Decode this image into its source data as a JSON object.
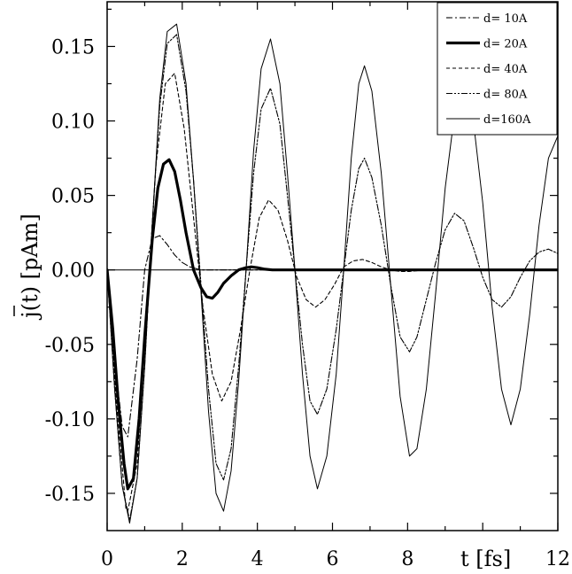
{
  "chart_data": {
    "type": "line",
    "title": "",
    "xlabel": "t [fs]",
    "ylabel": "j(t) [pAm]",
    "xlim": [
      0,
      12
    ],
    "ylim": [
      -0.175,
      0.18
    ],
    "x_ticks": [
      0,
      2,
      4,
      6,
      8,
      12
    ],
    "x_tick_labels": [
      "0",
      "2",
      "4",
      "6",
      "8",
      "12"
    ],
    "y_ticks": [
      0.15,
      0.1,
      0.05,
      0.0,
      -0.05,
      -0.1,
      -0.15
    ],
    "y_tick_labels": [
      "0.15",
      "0.10",
      "0.05",
      "0.00",
      "-0.05",
      "-0.10",
      "-0.15"
    ],
    "grid": false,
    "legend_position": "top-right",
    "zero_line": true,
    "series": [
      {
        "name": "d= 10A",
        "style": "dash-dot",
        "x": [
          0,
          0.2,
          0.4,
          0.55,
          0.8,
          1.0,
          1.2,
          1.4,
          1.6,
          1.8,
          2.0,
          2.2,
          2.5,
          3.0,
          12
        ],
        "y": [
          0,
          -0.06,
          -0.105,
          -0.112,
          -0.06,
          0.0,
          0.021,
          0.023,
          0.017,
          0.01,
          0.005,
          0.002,
          0.0,
          0.0,
          0.0
        ]
      },
      {
        "name": "d= 20A",
        "style": "thick",
        "x": [
          0,
          0.15,
          0.3,
          0.45,
          0.55,
          0.7,
          0.85,
          1.0,
          1.2,
          1.35,
          1.5,
          1.65,
          1.8,
          1.95,
          2.1,
          2.3,
          2.5,
          2.65,
          2.8,
          2.95,
          3.1,
          3.3,
          3.5,
          3.7,
          3.85,
          4.0,
          4.2,
          4.4,
          4.6,
          5.0,
          12
        ],
        "y": [
          0,
          -0.04,
          -0.09,
          -0.13,
          -0.147,
          -0.14,
          -0.1,
          -0.045,
          0.02,
          0.055,
          0.071,
          0.074,
          0.066,
          0.047,
          0.025,
          0.0,
          -0.012,
          -0.018,
          -0.019,
          -0.015,
          -0.009,
          -0.004,
          0.0,
          0.0015,
          0.002,
          0.0015,
          0.0005,
          0.0,
          0.0,
          0.0,
          0.0
        ]
      },
      {
        "name": "d= 40A",
        "style": "dashed",
        "x": [
          0,
          0.25,
          0.5,
          0.55,
          0.8,
          1.05,
          1.3,
          1.55,
          1.8,
          2.05,
          2.3,
          2.55,
          2.8,
          3.05,
          3.3,
          3.55,
          3.8,
          4.05,
          4.3,
          4.55,
          4.8,
          5.05,
          5.3,
          5.55,
          5.8,
          6.05,
          6.3,
          6.55,
          6.8,
          7.05,
          7.3,
          7.55,
          7.8,
          8.05,
          8.5,
          9.0,
          10.0,
          12
        ],
        "y": [
          0,
          -0.09,
          -0.16,
          -0.162,
          -0.13,
          -0.03,
          0.07,
          0.125,
          0.132,
          0.095,
          0.035,
          -0.025,
          -0.07,
          -0.088,
          -0.075,
          -0.04,
          0.0,
          0.035,
          0.047,
          0.04,
          0.02,
          -0.005,
          -0.02,
          -0.025,
          -0.02,
          -0.01,
          0.002,
          0.006,
          0.007,
          0.005,
          0.002,
          0.0,
          -0.001,
          -0.001,
          0.0,
          0.0,
          0.0,
          0.0
        ]
      },
      {
        "name": "d= 80A",
        "style": "dash-dot-dot",
        "x": [
          0,
          0.2,
          0.4,
          0.6,
          0.8,
          1.0,
          1.2,
          1.4,
          1.6,
          1.85,
          2.1,
          2.3,
          2.5,
          2.7,
          2.9,
          3.1,
          3.3,
          3.5,
          3.7,
          3.9,
          4.1,
          4.35,
          4.6,
          4.8,
          5.0,
          5.2,
          5.4,
          5.6,
          5.85,
          6.1,
          6.3,
          6.5,
          6.7,
          6.85,
          7.05,
          7.3,
          7.55,
          7.8,
          8.05,
          8.25,
          8.5,
          8.75,
          9.0,
          9.25,
          9.5,
          9.75,
          10.0,
          10.25,
          10.5,
          10.75,
          11.0,
          11.25,
          11.5,
          11.75,
          12.0
        ],
        "y": [
          0,
          -0.08,
          -0.145,
          -0.168,
          -0.14,
          -0.065,
          0.03,
          0.11,
          0.152,
          0.158,
          0.12,
          0.06,
          -0.01,
          -0.08,
          -0.13,
          -0.141,
          -0.12,
          -0.065,
          0.0,
          0.065,
          0.108,
          0.122,
          0.098,
          0.05,
          0.0,
          -0.05,
          -0.088,
          -0.097,
          -0.08,
          -0.04,
          0.0,
          0.04,
          0.068,
          0.075,
          0.062,
          0.03,
          -0.01,
          -0.045,
          -0.055,
          -0.045,
          -0.02,
          0.005,
          0.027,
          0.038,
          0.033,
          0.015,
          -0.005,
          -0.02,
          -0.025,
          -0.018,
          -0.005,
          0.006,
          0.012,
          0.014,
          0.011
        ]
      },
      {
        "name": "d=160A",
        "style": "solid-thin",
        "x": [
          0,
          0.2,
          0.4,
          0.6,
          0.8,
          1.0,
          1.2,
          1.4,
          1.6,
          1.85,
          2.1,
          2.3,
          2.5,
          2.7,
          2.9,
          3.1,
          3.3,
          3.5,
          3.7,
          3.9,
          4.1,
          4.35,
          4.6,
          4.8,
          5.0,
          5.2,
          5.4,
          5.6,
          5.85,
          6.1,
          6.3,
          6.5,
          6.7,
          6.85,
          7.05,
          7.3,
          7.55,
          7.8,
          8.05,
          8.25,
          8.5,
          8.75,
          9.0,
          9.25,
          9.5,
          9.75,
          10.0,
          10.25,
          10.5,
          10.75,
          11.0,
          11.25,
          11.5,
          11.75,
          12.0
        ],
        "y": [
          0,
          -0.08,
          -0.145,
          -0.17,
          -0.14,
          -0.065,
          0.03,
          0.115,
          0.16,
          0.165,
          0.125,
          0.06,
          -0.015,
          -0.095,
          -0.15,
          -0.162,
          -0.135,
          -0.075,
          0.0,
          0.08,
          0.135,
          0.155,
          0.125,
          0.065,
          0.0,
          -0.07,
          -0.125,
          -0.147,
          -0.125,
          -0.07,
          0.0,
          0.075,
          0.125,
          0.137,
          0.12,
          0.065,
          -0.01,
          -0.085,
          -0.125,
          -0.12,
          -0.08,
          -0.015,
          0.055,
          0.105,
          0.118,
          0.1,
          0.045,
          -0.025,
          -0.08,
          -0.104,
          -0.08,
          -0.03,
          0.03,
          0.075,
          0.09
        ]
      }
    ]
  }
}
